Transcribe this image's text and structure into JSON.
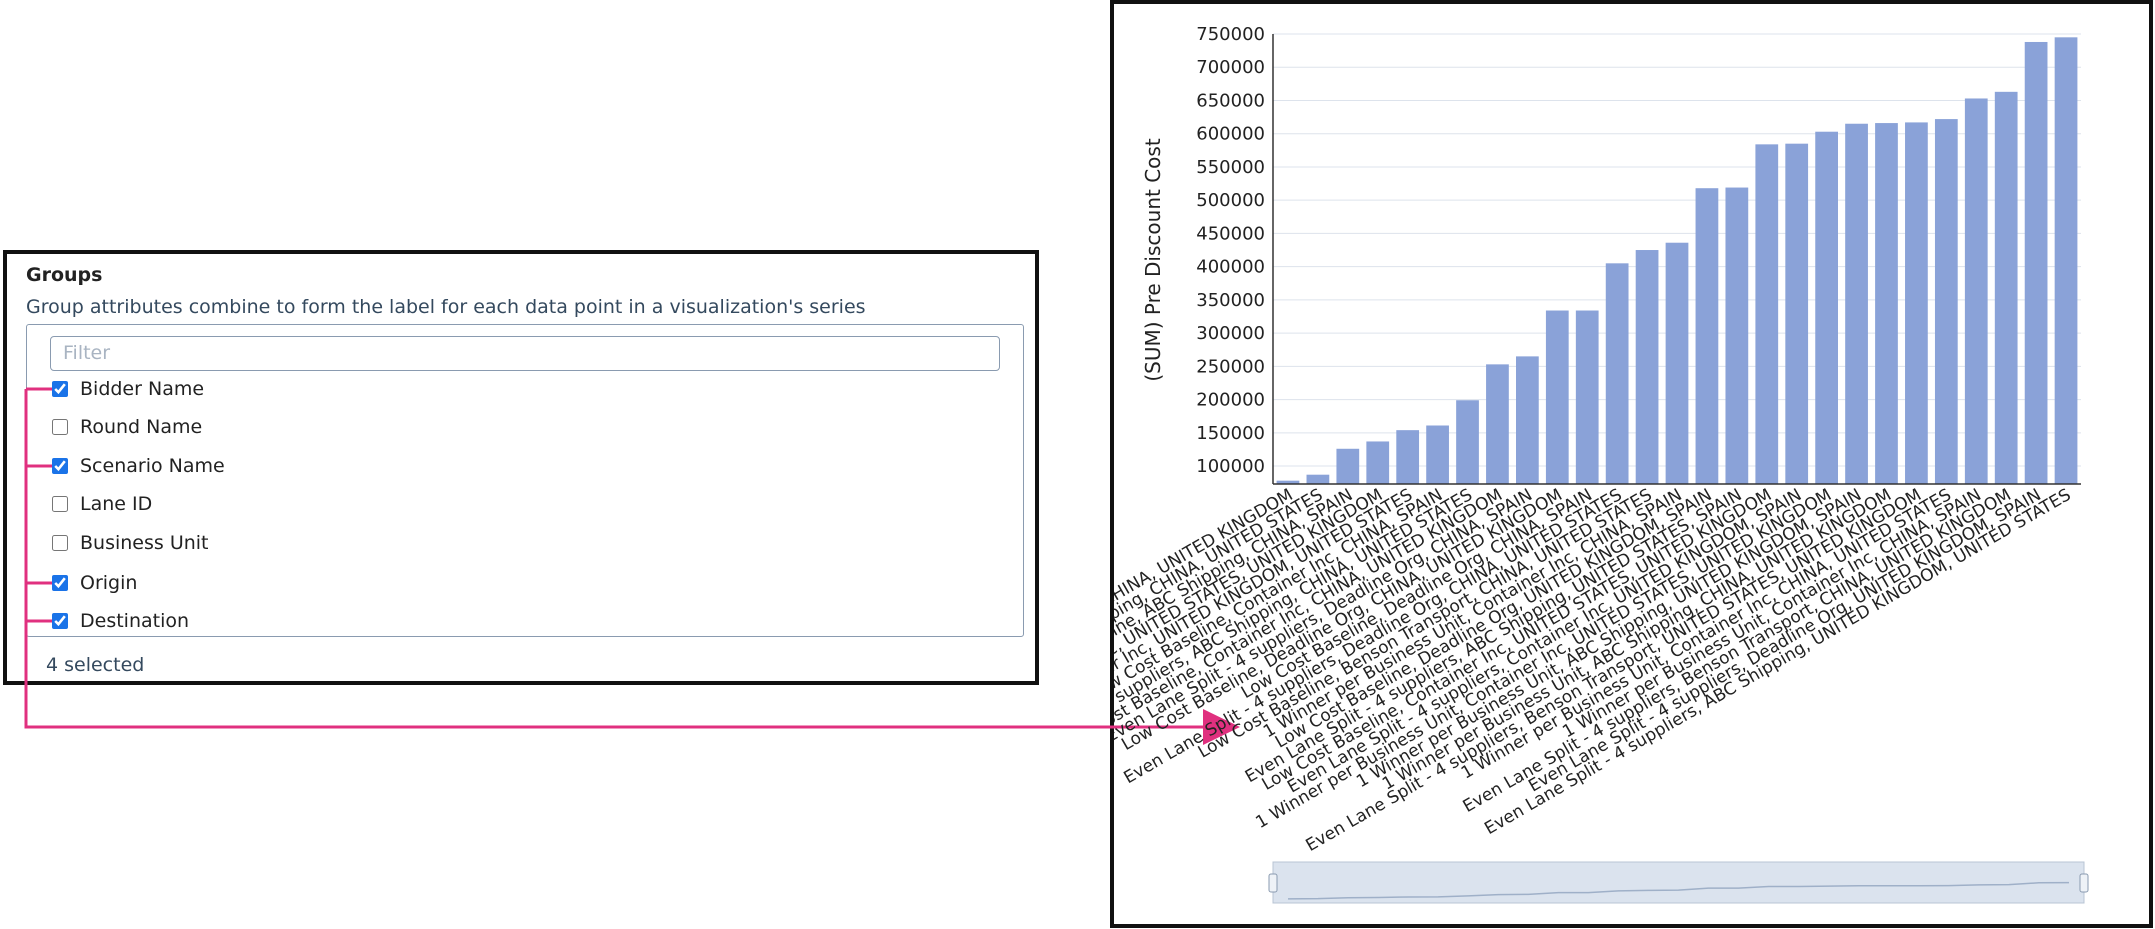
{
  "panel": {
    "title": "Groups",
    "description": "Group attributes combine to form the label for each data point in a visualization's series",
    "filter_placeholder": "Filter",
    "items": [
      {
        "label": "Bidder Name",
        "checked": true
      },
      {
        "label": "Round Name",
        "checked": false
      },
      {
        "label": "Scenario Name",
        "checked": true
      },
      {
        "label": "Lane ID",
        "checked": false
      },
      {
        "label": "Business Unit",
        "checked": false
      },
      {
        "label": "Origin",
        "checked": true
      },
      {
        "label": "Destination",
        "checked": true
      }
    ],
    "selected_text": "4 selected"
  },
  "chart_data": {
    "type": "bar",
    "y_label": "(SUM) Pre Discount Cost",
    "categories": [
      "Low Cost Baseline, Benson Transport, CHINA, UNITED KINGDOM",
      "Low Cost Baseline, ABC Shipping, CHINA, UNITED STATES",
      "Low Cost Baseline, ABC Shipping, CHINA, SPAIN",
      "Low Cost Baseline, Container Inc, UNITED STATES, UNITED KINGDOM",
      "Low Cost Baseline, Container Inc, UNITED KINGDOM, UNITED STATES",
      "Low Cost Baseline, Container Inc, CHINA, SPAIN",
      "Even Lane Split - 4 suppliers, ABC Shipping, CHINA, UNITED STATES",
      "Low Cost Baseline, Container Inc, CHINA, UNITED KINGDOM",
      "Even Lane Split - 4 suppliers, Deadline Org, CHINA, SPAIN",
      "Low Cost Baseline, Deadline Org, CHINA, UNITED KINGDOM",
      "Low Cost Baseline, Deadline Org, CHINA, SPAIN",
      "Even Lane Split - 4 suppliers, Deadline Org, CHINA, UNITED STATES",
      "Low Cost Baseline, Benson Transport, CHINA, UNITED STATES",
      "1 Winner per Business Unit, Container Inc, CHINA, SPAIN",
      "Low Cost Baseline, Deadline Org, UNITED KINGDOM, SPAIN",
      "Even Lane Split - 4 suppliers, ABC Shipping, UNITED STATES, SPAIN",
      "Low Cost Baseline, Container Inc, UNITED STATES, UNITED KINGDOM",
      "Even Lane Split - 4 suppliers, Container Inc, UNITED KINGDOM, SPAIN",
      "1 Winner per Business Unit, Container Inc, UNITED STATES, UNITED KINGDOM",
      "1 Winner per Business Unit, ABC Shipping, UNITED KINGDOM, SPAIN",
      "1 Winner per Business Unit, ABC Shipping, CHINA, UNITED KINGDOM",
      "Even Lane Split - 4 suppliers, Benson Transport, UNITED STATES, UNITED KINGDOM",
      "1 Winner per Business Unit, Container Inc, CHINA, UNITED STATES",
      "1 Winner per Business Unit, Container Inc, CHINA, SPAIN",
      "Even Lane Split - 4 suppliers, Benson Transport, CHINA, UNITED KINGDOM",
      "Even Lane Split - 4 suppliers, Deadline Org, UNITED KINGDOM, SPAIN",
      "Even Lane Split - 4 suppliers, ABC Shipping, UNITED KINGDOM, UNITED STATES"
    ],
    "values": [
      78000,
      87000,
      126000,
      137000,
      154000,
      161000,
      199000,
      253000,
      265000,
      334000,
      334000,
      405000,
      425000,
      436000,
      518000,
      519000,
      584000,
      585000,
      603000,
      615000,
      616000,
      617000,
      622000,
      653000,
      663000,
      738000,
      745000
    ],
    "color": "#8aa2d8",
    "ylim": [
      73000,
      750000
    ],
    "yticks": [
      100000,
      150000,
      200000,
      250000,
      300000,
      350000,
      400000,
      450000,
      500000,
      550000,
      600000,
      650000,
      700000,
      750000
    ],
    "grid": true
  }
}
